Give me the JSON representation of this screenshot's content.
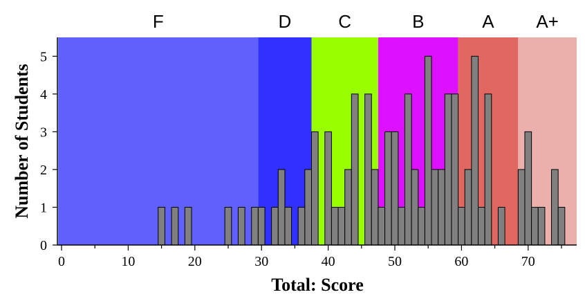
{
  "chart_data": {
    "type": "bar",
    "xlabel": "Total: Score",
    "ylabel": "Number of Students",
    "xlim": [
      -0.5,
      77.5
    ],
    "ylim": [
      0,
      5.5
    ],
    "xticks": [
      0,
      10,
      20,
      30,
      40,
      50,
      60,
      70
    ],
    "yticks": [
      0,
      1,
      2,
      3,
      4,
      5
    ],
    "bar_color": "#808080",
    "grade_bands": [
      {
        "label": "F",
        "start": -0.5,
        "end": 29.5,
        "color": "#6060ff"
      },
      {
        "label": "D",
        "start": 29.5,
        "end": 37.5,
        "color": "#3030ff"
      },
      {
        "label": "C",
        "start": 37.5,
        "end": 47.5,
        "color": "#99ff00"
      },
      {
        "label": "B",
        "start": 47.5,
        "end": 59.5,
        "color": "#dd11ff"
      },
      {
        "label": "A",
        "start": 59.5,
        "end": 68.5,
        "color": "#e06860"
      },
      {
        "label": "A+",
        "start": 68.5,
        "end": 77.5,
        "color": "#ecb0ac"
      }
    ],
    "bins": [
      {
        "x": 15,
        "count": 1
      },
      {
        "x": 17,
        "count": 1
      },
      {
        "x": 19,
        "count": 1
      },
      {
        "x": 25,
        "count": 1
      },
      {
        "x": 27,
        "count": 1
      },
      {
        "x": 29,
        "count": 1
      },
      {
        "x": 30,
        "count": 1
      },
      {
        "x": 32,
        "count": 1
      },
      {
        "x": 33,
        "count": 2
      },
      {
        "x": 34,
        "count": 1
      },
      {
        "x": 36,
        "count": 1
      },
      {
        "x": 37,
        "count": 2
      },
      {
        "x": 38,
        "count": 3
      },
      {
        "x": 40,
        "count": 3
      },
      {
        "x": 41,
        "count": 1
      },
      {
        "x": 42,
        "count": 1
      },
      {
        "x": 43,
        "count": 2
      },
      {
        "x": 44,
        "count": 4
      },
      {
        "x": 46,
        "count": 4
      },
      {
        "x": 47,
        "count": 2
      },
      {
        "x": 48,
        "count": 1
      },
      {
        "x": 49,
        "count": 3
      },
      {
        "x": 50,
        "count": 3
      },
      {
        "x": 51,
        "count": 1
      },
      {
        "x": 52,
        "count": 4
      },
      {
        "x": 53,
        "count": 2
      },
      {
        "x": 54,
        "count": 1
      },
      {
        "x": 55,
        "count": 5
      },
      {
        "x": 56,
        "count": 2
      },
      {
        "x": 57,
        "count": 2
      },
      {
        "x": 58,
        "count": 4
      },
      {
        "x": 59,
        "count": 4
      },
      {
        "x": 60,
        "count": 1
      },
      {
        "x": 61,
        "count": 2
      },
      {
        "x": 62,
        "count": 5
      },
      {
        "x": 63,
        "count": 1
      },
      {
        "x": 64,
        "count": 4
      },
      {
        "x": 66,
        "count": 1
      },
      {
        "x": 69,
        "count": 2
      },
      {
        "x": 70,
        "count": 3
      },
      {
        "x": 71,
        "count": 1
      },
      {
        "x": 72,
        "count": 1
      },
      {
        "x": 74,
        "count": 2
      },
      {
        "x": 75,
        "count": 1
      }
    ]
  }
}
